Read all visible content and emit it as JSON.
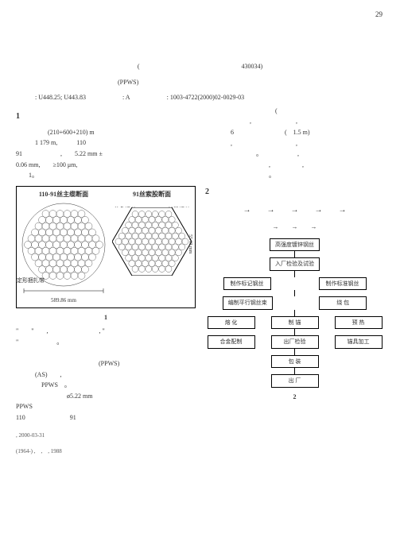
{
  "page_number": "29",
  "affiliation": "(　　　　　　　　　　　　　　　　430034)",
  "abstract_keyword": "(PPWS)",
  "classification": {
    "left": "U448.25; U443.83",
    "mid": "A",
    "right": "1003-4722(2000)02-0029-03"
  },
  "section1": {
    "num": "1",
    "span_text": "(210+600+210) m",
    "length1": "1 179 m,",
    "count1": "110",
    "count2": "91",
    "wire_dia": "5.22 mm ±",
    "tol": "0.06 mm,",
    "cond": "≥100 μm,",
    "count3": "6",
    "paren_len": "(　1.5 m)",
    "fig_ref": "1。"
  },
  "figure1": {
    "title_left": "110-91丝主缆断面",
    "title_right": "91丝索股断面",
    "ann_colored": "着色钢丝",
    "ann_outer": "某股钢丝",
    "ann_wrap": "定形捆扎带",
    "dim_bottom": "589.86 mm",
    "dim_right": "55.43 mm",
    "caption": "1",
    "hex_outline": "#000000",
    "circle_stroke": "#000000",
    "background": "#ffffff"
  },
  "body2": {
    "ppws": "(PPWS)",
    "as": "(AS)",
    "ppws2": "PPWS",
    "dia": "ø5.22 mm",
    "ppws3": "PPWS",
    "n110": "110",
    "n91": "91"
  },
  "section2": {
    "num": "2"
  },
  "arrow_flow": {
    "arrows": "→　　→　　→　　→　　→"
  },
  "flowchart": {
    "nodes": {
      "a": "高强度镀锌钢丝",
      "b": "入厂检验及试验",
      "c1": "制作标记钢丝",
      "c2": "制作标准钢丝",
      "d": "编制平行钢丝束",
      "d_side": "绕 包",
      "e1": "熔 化",
      "e2": "制 锚",
      "e2_side": "预 热",
      "f1": "合金配制",
      "f2": "出厂检验",
      "f2_side": "锚具加工",
      "g": "包 装",
      "h": "出 厂"
    },
    "box_border": "#000000",
    "line_color": "#000000",
    "font_size": 7
  },
  "flowchart_caption": "2",
  "footer": {
    "date": ", 2000-03-31",
    "author": "(1964-) ,　,　, 1988"
  }
}
